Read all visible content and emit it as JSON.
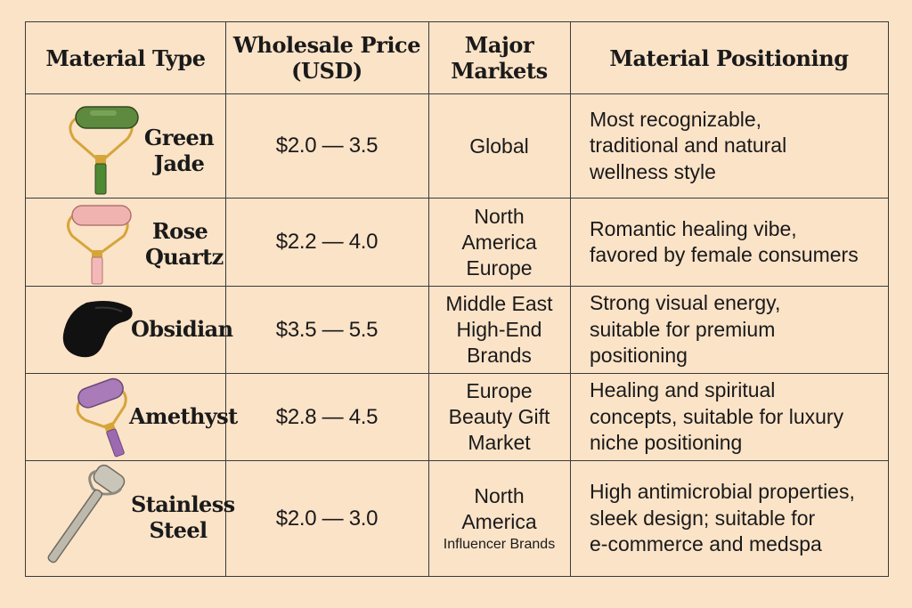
{
  "headers": {
    "material": "Material Type",
    "price_line1": "Wholesale Price",
    "price_line2": "(USD)",
    "markets_line1": "Major",
    "markets_line2": "Markets",
    "positioning": "Material Positioning"
  },
  "rows": [
    {
      "name_line1": "Green",
      "name_line2": "Jade",
      "icon": "jade-roller-icon",
      "price": "$2.0 — 3.5",
      "market_lines": [
        "Global"
      ],
      "positioning_lines": [
        "Most recognizable,",
        "traditional and natural",
        "wellness style"
      ]
    },
    {
      "name_line1": "Rose",
      "name_line2": "Quartz",
      "icon": "rose-quartz-roller-icon",
      "price": "$2.2 — 4.0",
      "market_lines": [
        "North",
        "America",
        "Europe"
      ],
      "positioning_lines": [
        "Romantic healing vibe,",
        "favored by female consumers"
      ]
    },
    {
      "name_line1": "Obsidian",
      "name_line2": "",
      "icon": "obsidian-gua-sha-icon",
      "price": "$3.5 — 5.5",
      "market_lines": [
        "Middle East",
        "High-End",
        "Brands"
      ],
      "positioning_lines": [
        "Strong visual energy,",
        "suitable for premium",
        "positioning"
      ]
    },
    {
      "name_line1": "Amethyst",
      "name_line2": "",
      "icon": "amethyst-roller-icon",
      "price": "$2.8 — 4.5",
      "market_lines": [
        "Europe",
        "Beauty Gift",
        "Market"
      ],
      "positioning_lines": [
        "Healing and spiritual",
        "concepts, suitable for luxury",
        "niche positioning"
      ]
    },
    {
      "name_line1": "Stainless",
      "name_line2": "Steel",
      "icon": "stainless-steel-roller-icon",
      "price": "$2.0 — 3.0",
      "market_lines": [
        "North",
        "America"
      ],
      "market_small": "Influencer Brands",
      "positioning_lines": [
        "High antimicrobial properties,",
        "sleek design; suitable for",
        "e-commerce and medspa"
      ]
    }
  ],
  "colors": {
    "background": "#fbe3c8",
    "border": "#3a3a3a",
    "jade": "#5d8a3e",
    "rose_quartz": "#f1b3b0",
    "obsidian": "#111111",
    "amethyst": "#a97bb8",
    "steel": "#b8b4a8",
    "gold": "#d6a53a"
  }
}
